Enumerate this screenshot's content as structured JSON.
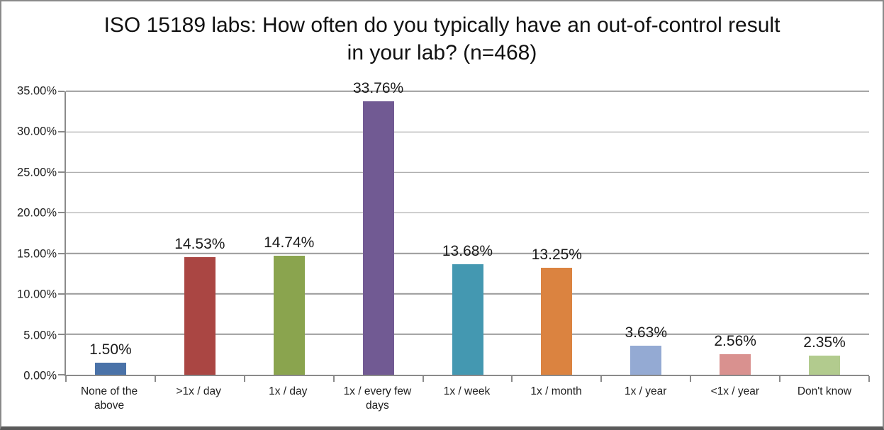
{
  "chart_data": {
    "type": "bar",
    "title": "ISO 15189 labs: How often do you typically have an out-of-control result in your lab? (n=468)",
    "categories": [
      "None of the above",
      ">1x / day",
      "1x / day",
      "1x / every few days",
      "1x / week",
      "1x / month",
      "1x / year",
      "<1x / year",
      "Don't know"
    ],
    "values": [
      1.5,
      14.53,
      14.74,
      33.76,
      13.68,
      13.25,
      3.63,
      2.56,
      2.35
    ],
    "value_labels": [
      "1.50%",
      "14.53%",
      "14.74%",
      "33.76%",
      "13.68%",
      "13.25%",
      "3.63%",
      "2.56%",
      "2.35%"
    ],
    "bar_colors": [
      "#4A72A8",
      "#AA4643",
      "#8AA44E",
      "#715A93",
      "#4498B1",
      "#DB8340",
      "#94AAD3",
      "#D9918F",
      "#B2CB8E"
    ],
    "xlabel": "",
    "ylabel": "",
    "ylim": [
      0,
      35
    ],
    "yticks": [
      0,
      5,
      10,
      15,
      20,
      25,
      30,
      35
    ],
    "ytick_labels": [
      "0.00%",
      "5.00%",
      "10.00%",
      "15.00%",
      "20.00%",
      "25.00%",
      "30.00%",
      "35.00%"
    ],
    "grid": true,
    "legend": "none"
  },
  "style_colors": {
    "axis": "#8a8a8a",
    "gridline": "#9b9b9b",
    "text": "#1a1a1a",
    "frame_border": "#8a8a8a",
    "frame_bottom": "#5a5a5a",
    "background": "#ffffff"
  }
}
